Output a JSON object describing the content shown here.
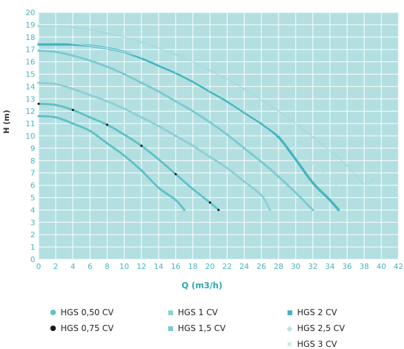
{
  "chart_data": {
    "type": "line",
    "xlabel": "Q (m3/h)",
    "ylabel": "H (m)",
    "xlim": [
      0,
      42
    ],
    "ylim": [
      0,
      20
    ],
    "x_ticks": [
      0,
      2,
      4,
      6,
      8,
      10,
      12,
      14,
      16,
      18,
      20,
      22,
      24,
      26,
      28,
      30,
      32,
      34,
      36,
      38,
      40,
      42
    ],
    "y_ticks": [
      0,
      1,
      2,
      3,
      4,
      5,
      6,
      7,
      8,
      9,
      10,
      11,
      12,
      13,
      14,
      15,
      16,
      17,
      18,
      19,
      20
    ],
    "grid": true,
    "legend_position": "bottom",
    "background_color": "#b3dfe1",
    "series": [
      {
        "name": "HGS 0,50 CV",
        "marker": "circle",
        "color": "#5fc1c7",
        "points": [
          [
            0,
            11.6
          ],
          [
            2,
            11.5
          ],
          [
            4,
            11.0
          ],
          [
            6,
            10.4
          ],
          [
            8,
            9.4
          ],
          [
            10,
            8.4
          ],
          [
            12,
            7.2
          ],
          [
            14,
            5.8
          ],
          [
            16,
            4.8
          ],
          [
            17,
            4.0
          ]
        ]
      },
      {
        "name": "HGS 0,75 CV",
        "marker": "circle",
        "color": "#1a1a1a",
        "line_color": "#5fc1c7",
        "points": [
          [
            0,
            12.6
          ],
          [
            2,
            12.5
          ],
          [
            4,
            12.1
          ],
          [
            6,
            11.5
          ],
          [
            8,
            10.9
          ],
          [
            10,
            10.1
          ],
          [
            12,
            9.2
          ],
          [
            14,
            8.1
          ],
          [
            16,
            6.9
          ],
          [
            18,
            5.7
          ],
          [
            20,
            4.6
          ],
          [
            21,
            4.0
          ]
        ]
      },
      {
        "name": "HGS 1 CV",
        "marker": "square",
        "color": "#8dd0d4",
        "points": [
          [
            0,
            14.3
          ],
          [
            2,
            14.2
          ],
          [
            4,
            13.8
          ],
          [
            6,
            13.3
          ],
          [
            8,
            12.8
          ],
          [
            10,
            12.2
          ],
          [
            12,
            11.5
          ],
          [
            14,
            10.8
          ],
          [
            16,
            10.0
          ],
          [
            18,
            9.2
          ],
          [
            20,
            8.3
          ],
          [
            22,
            7.4
          ],
          [
            24,
            6.3
          ],
          [
            26,
            5.2
          ],
          [
            27,
            4.0
          ]
        ]
      },
      {
        "name": "HGS 1,5 CV",
        "marker": "square",
        "color": "#7acbd0",
        "points": [
          [
            0,
            16.9
          ],
          [
            2,
            16.8
          ],
          [
            4,
            16.5
          ],
          [
            6,
            16.1
          ],
          [
            8,
            15.6
          ],
          [
            10,
            15.0
          ],
          [
            12,
            14.3
          ],
          [
            14,
            13.6
          ],
          [
            16,
            12.8
          ],
          [
            18,
            12.0
          ],
          [
            20,
            11.1
          ],
          [
            22,
            10.1
          ],
          [
            24,
            9.0
          ],
          [
            26,
            7.9
          ],
          [
            28,
            6.7
          ],
          [
            30,
            5.4
          ],
          [
            32,
            4.0
          ]
        ]
      },
      {
        "name": "HGS 2 CV",
        "marker": "square",
        "color": "#45b4bf",
        "points": [
          [
            0,
            17.4
          ],
          [
            2,
            17.4
          ],
          [
            4,
            17.4
          ],
          [
            6,
            17.3
          ],
          [
            8,
            17.1
          ],
          [
            10,
            16.8
          ],
          [
            12,
            16.3
          ],
          [
            14,
            15.7
          ],
          [
            16,
            15.1
          ],
          [
            18,
            14.4
          ],
          [
            20,
            13.6
          ],
          [
            22,
            12.8
          ],
          [
            24,
            11.9
          ],
          [
            26,
            11.0
          ],
          [
            28,
            9.9
          ],
          [
            30,
            8.1
          ],
          [
            32,
            6.2
          ],
          [
            34,
            4.8
          ],
          [
            35,
            4.0
          ]
        ]
      },
      {
        "name": "HGS 2,5 CV",
        "marker": "diamond",
        "color": "#b7e3e6",
        "points": [
          [
            0,
            17.6
          ],
          [
            2,
            17.6
          ],
          [
            4,
            17.5
          ],
          [
            6,
            17.3
          ],
          [
            8,
            17.1
          ],
          [
            10,
            16.8
          ],
          [
            12,
            16.4
          ],
          [
            14,
            15.8
          ],
          [
            16,
            15.2
          ],
          [
            18,
            14.5
          ],
          [
            20,
            13.7
          ],
          [
            22,
            12.9
          ],
          [
            24,
            12.0
          ],
          [
            26,
            11.1
          ],
          [
            28,
            10.1
          ],
          [
            30,
            9.0
          ],
          [
            32,
            7.8
          ],
          [
            34,
            6.5
          ],
          [
            35,
            5.8
          ]
        ]
      },
      {
        "name": "HGS 3 CV",
        "marker": "x",
        "color": "#9cd8dc",
        "points": [
          [
            0,
            18.9
          ],
          [
            2,
            18.9
          ],
          [
            4,
            18.8
          ],
          [
            6,
            18.6
          ],
          [
            8,
            18.3
          ],
          [
            10,
            18.0
          ],
          [
            12,
            17.6
          ],
          [
            14,
            17.1
          ],
          [
            16,
            16.6
          ],
          [
            18,
            16.0
          ],
          [
            20,
            15.3
          ],
          [
            22,
            14.6
          ],
          [
            24,
            13.8
          ],
          [
            26,
            12.9
          ],
          [
            28,
            12.0
          ],
          [
            30,
            11.0
          ],
          [
            32,
            9.9
          ],
          [
            34,
            8.8
          ],
          [
            36,
            7.6
          ],
          [
            38,
            6.1
          ],
          [
            39,
            6.4
          ]
        ]
      }
    ]
  },
  "legend": {
    "items": [
      {
        "label": "HGS 0,50 CV",
        "marker": "circle",
        "color": "#5fc1c7"
      },
      {
        "label": "HGS 0,75 CV",
        "marker": "circle",
        "color": "#1a1a1a"
      },
      {
        "label": "HGS 1 CV",
        "marker": "square",
        "color": "#8dd0d4"
      },
      {
        "label": "HGS 1,5 CV",
        "marker": "square",
        "color": "#7acbd0"
      },
      {
        "label": "HGS 2 CV",
        "marker": "square",
        "color": "#45b4bf"
      },
      {
        "label": "HGS 2,5 CV",
        "marker": "diamond",
        "color": "#b7e3e6"
      },
      {
        "label": "HGS 3 CV",
        "marker": "x",
        "color": "#9cd8dc"
      }
    ]
  }
}
